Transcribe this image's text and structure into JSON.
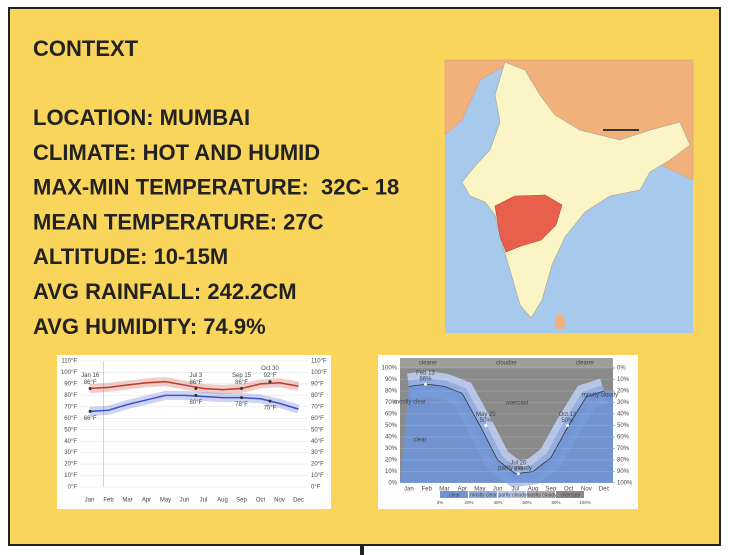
{
  "title": "CONTEXT",
  "facts": [
    "LOCATION: MUMBAI",
    "CLIMATE: HOT AND HUMID",
    "MAX-MIN TEMPERATURE:  32C- 18",
    "MEAN TEMPERATURE: 27C",
    "ALTITUDE: 10-15M",
    "AVG RAINFALL: 242.2CM",
    "AVG HUMIDITY: 74.9%"
  ],
  "temperature_chart": {
    "type": "line",
    "categories": [
      "Jan",
      "Feb",
      "Mar",
      "Apr",
      "May",
      "Jun",
      "Jul",
      "Aug",
      "Sep",
      "Oct",
      "Nov",
      "Dec"
    ],
    "series": [
      {
        "color": "#c0392b",
        "values": [
          86,
          87,
          89,
          91,
          92,
          89,
          86,
          85,
          86,
          90,
          91,
          88
        ]
      },
      {
        "color": "#3b52c9",
        "values": [
          66,
          67,
          72,
          76,
          80,
          80,
          79,
          78,
          78,
          77,
          73,
          68
        ]
      }
    ],
    "ylim": [
      0,
      110
    ],
    "yticks": [
      {
        "value": 0,
        "label": "0°F"
      },
      {
        "value": 10,
        "label": "10°F"
      },
      {
        "value": 20,
        "label": "20°F"
      },
      {
        "value": 30,
        "label": "30°F"
      },
      {
        "value": 40,
        "label": "40°F"
      },
      {
        "value": 50,
        "label": "50°F"
      },
      {
        "value": 60,
        "label": "60°F"
      },
      {
        "value": 70,
        "label": "70°F"
      },
      {
        "value": 80,
        "label": "80°F"
      },
      {
        "value": 90,
        "label": "90°F"
      },
      {
        "value": 100,
        "label": "100°F"
      },
      {
        "value": 110,
        "label": "110°F"
      }
    ],
    "grid": true,
    "annotations": [
      {
        "date": "Jan 16",
        "high": 86,
        "high_label": "86°F",
        "low": 66,
        "low_label": "66°F"
      },
      {
        "date": "Jul 3",
        "high": 86,
        "high_label": "86°F",
        "low": 80,
        "low_label": "80°F"
      },
      {
        "date": "Sep 15",
        "high": 86,
        "high_label": "86°F",
        "low": 78,
        "low_label": "78°F"
      },
      {
        "date": "Oct 30",
        "high": 92,
        "high_label": "92°F",
        "low": 75,
        "low_label": "75°F"
      }
    ]
  },
  "cloud_chart": {
    "type": "area",
    "top_labels": [
      "clearer",
      "cloudier",
      "clearer"
    ],
    "categories": [
      "Jan",
      "Feb",
      "Mar",
      "Apr",
      "May",
      "Jun",
      "Jul",
      "Aug",
      "Sep",
      "Oct",
      "Nov",
      "Dec"
    ],
    "series": [
      {
        "color": "#6f93d6",
        "values": [
          84,
          86,
          84,
          78,
          50,
          20,
          8,
          10,
          22,
          50,
          75,
          80
        ]
      }
    ],
    "ylim": [
      0,
      100
    ],
    "yticks": [
      {
        "value": 0,
        "label": "0%"
      },
      {
        "value": 10,
        "label": "10%"
      },
      {
        "value": 20,
        "label": "20%"
      },
      {
        "value": 30,
        "label": "30%"
      },
      {
        "value": 40,
        "label": "40%"
      },
      {
        "value": 50,
        "label": "50%"
      },
      {
        "value": 60,
        "label": "60%"
      },
      {
        "value": 70,
        "label": "70%"
      },
      {
        "value": 80,
        "label": "80%"
      },
      {
        "value": 90,
        "label": "90%"
      },
      {
        "value": 100,
        "label": "100%"
      }
    ],
    "y2lim": [
      100,
      0
    ],
    "y2ticks": [
      {
        "value": 0,
        "label": "0%"
      },
      {
        "value": 10,
        "label": "10%"
      },
      {
        "value": 20,
        "label": "20%"
      },
      {
        "value": 30,
        "label": "30%"
      },
      {
        "value": 40,
        "label": "40%"
      },
      {
        "value": 50,
        "label": "50%"
      },
      {
        "value": 60,
        "label": "60%"
      },
      {
        "value": 70,
        "label": "70%"
      },
      {
        "value": 80,
        "label": "80%"
      },
      {
        "value": 90,
        "label": "90%"
      },
      {
        "value": 100,
        "label": "100%"
      }
    ],
    "regions": [
      "clear",
      "mostly clear",
      "overcast",
      "partly cloudy",
      "mostly cloudy"
    ],
    "annotations": [
      {
        "date": "Feb 13",
        "value": 86,
        "label": "86%"
      },
      {
        "date": "May 25",
        "value": 50,
        "label": "50%"
      },
      {
        "date": "Jul 20",
        "value": 8,
        "label": "8%"
      },
      {
        "date": "Oct 13",
        "value": 50,
        "label": "50%"
      }
    ],
    "legend": [
      {
        "name": "clear",
        "color": "#6f93d6"
      },
      {
        "name": "mostly clear",
        "color": "#93aee0"
      },
      {
        "name": "partly cloudy",
        "color": "#b8c6e6"
      },
      {
        "name": "mostly cloudy",
        "color": "#a9a9a9"
      },
      {
        "name": "overcast",
        "color": "#8a8a8a"
      }
    ],
    "legend_scale": [
      {
        "value": 0,
        "label": "0%"
      },
      {
        "value": 20,
        "label": "20%"
      },
      {
        "value": 40,
        "label": "40%"
      },
      {
        "value": 60,
        "label": "60%"
      },
      {
        "value": 80,
        "label": "80%"
      },
      {
        "value": 100,
        "label": "100%"
      }
    ]
  }
}
